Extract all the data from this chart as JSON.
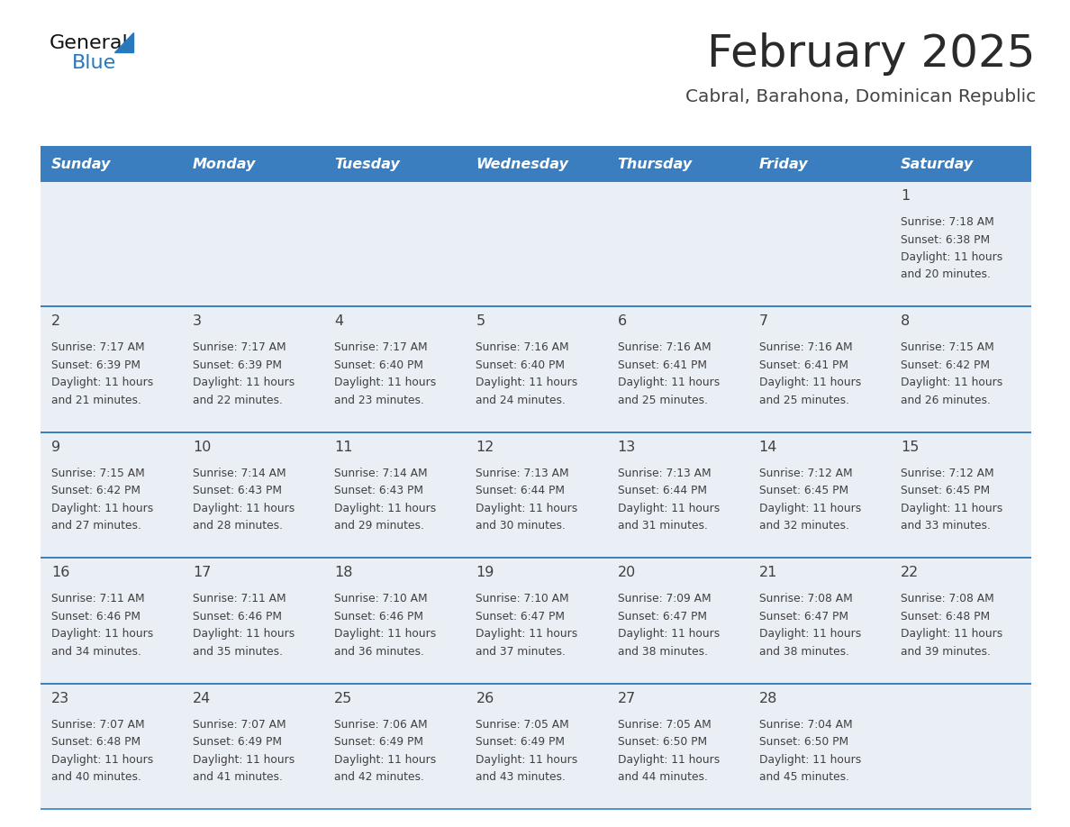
{
  "title": "February 2025",
  "subtitle": "Cabral, Barahona, Dominican Republic",
  "days_of_week": [
    "Sunday",
    "Monday",
    "Tuesday",
    "Wednesday",
    "Thursday",
    "Friday",
    "Saturday"
  ],
  "header_bg": "#3A7EBF",
  "header_text_color": "#FFFFFF",
  "cell_bg": "#EAEFF5",
  "row_line_color": "#3A7EBF",
  "text_color": "#404040",
  "day_num_color": "#404040",
  "title_color": "#2a2a2a",
  "subtitle_color": "#444444",
  "logo_general_color": "#111111",
  "logo_blue_color": "#2878BE",
  "calendar_data": [
    [
      {
        "day": null,
        "sunrise": null,
        "sunset": null,
        "daylight": null
      },
      {
        "day": null,
        "sunrise": null,
        "sunset": null,
        "daylight": null
      },
      {
        "day": null,
        "sunrise": null,
        "sunset": null,
        "daylight": null
      },
      {
        "day": null,
        "sunrise": null,
        "sunset": null,
        "daylight": null
      },
      {
        "day": null,
        "sunrise": null,
        "sunset": null,
        "daylight": null
      },
      {
        "day": null,
        "sunrise": null,
        "sunset": null,
        "daylight": null
      },
      {
        "day": 1,
        "sunrise": "7:18 AM",
        "sunset": "6:38 PM",
        "daylight_line1": "11 hours",
        "daylight_line2": "and 20 minutes."
      }
    ],
    [
      {
        "day": 2,
        "sunrise": "7:17 AM",
        "sunset": "6:39 PM",
        "daylight_line1": "11 hours",
        "daylight_line2": "and 21 minutes."
      },
      {
        "day": 3,
        "sunrise": "7:17 AM",
        "sunset": "6:39 PM",
        "daylight_line1": "11 hours",
        "daylight_line2": "and 22 minutes."
      },
      {
        "day": 4,
        "sunrise": "7:17 AM",
        "sunset": "6:40 PM",
        "daylight_line1": "11 hours",
        "daylight_line2": "and 23 minutes."
      },
      {
        "day": 5,
        "sunrise": "7:16 AM",
        "sunset": "6:40 PM",
        "daylight_line1": "11 hours",
        "daylight_line2": "and 24 minutes."
      },
      {
        "day": 6,
        "sunrise": "7:16 AM",
        "sunset": "6:41 PM",
        "daylight_line1": "11 hours",
        "daylight_line2": "and 25 minutes."
      },
      {
        "day": 7,
        "sunrise": "7:16 AM",
        "sunset": "6:41 PM",
        "daylight_line1": "11 hours",
        "daylight_line2": "and 25 minutes."
      },
      {
        "day": 8,
        "sunrise": "7:15 AM",
        "sunset": "6:42 PM",
        "daylight_line1": "11 hours",
        "daylight_line2": "and 26 minutes."
      }
    ],
    [
      {
        "day": 9,
        "sunrise": "7:15 AM",
        "sunset": "6:42 PM",
        "daylight_line1": "11 hours",
        "daylight_line2": "and 27 minutes."
      },
      {
        "day": 10,
        "sunrise": "7:14 AM",
        "sunset": "6:43 PM",
        "daylight_line1": "11 hours",
        "daylight_line2": "and 28 minutes."
      },
      {
        "day": 11,
        "sunrise": "7:14 AM",
        "sunset": "6:43 PM",
        "daylight_line1": "11 hours",
        "daylight_line2": "and 29 minutes."
      },
      {
        "day": 12,
        "sunrise": "7:13 AM",
        "sunset": "6:44 PM",
        "daylight_line1": "11 hours",
        "daylight_line2": "and 30 minutes."
      },
      {
        "day": 13,
        "sunrise": "7:13 AM",
        "sunset": "6:44 PM",
        "daylight_line1": "11 hours",
        "daylight_line2": "and 31 minutes."
      },
      {
        "day": 14,
        "sunrise": "7:12 AM",
        "sunset": "6:45 PM",
        "daylight_line1": "11 hours",
        "daylight_line2": "and 32 minutes."
      },
      {
        "day": 15,
        "sunrise": "7:12 AM",
        "sunset": "6:45 PM",
        "daylight_line1": "11 hours",
        "daylight_line2": "and 33 minutes."
      }
    ],
    [
      {
        "day": 16,
        "sunrise": "7:11 AM",
        "sunset": "6:46 PM",
        "daylight_line1": "11 hours",
        "daylight_line2": "and 34 minutes."
      },
      {
        "day": 17,
        "sunrise": "7:11 AM",
        "sunset": "6:46 PM",
        "daylight_line1": "11 hours",
        "daylight_line2": "and 35 minutes."
      },
      {
        "day": 18,
        "sunrise": "7:10 AM",
        "sunset": "6:46 PM",
        "daylight_line1": "11 hours",
        "daylight_line2": "and 36 minutes."
      },
      {
        "day": 19,
        "sunrise": "7:10 AM",
        "sunset": "6:47 PM",
        "daylight_line1": "11 hours",
        "daylight_line2": "and 37 minutes."
      },
      {
        "day": 20,
        "sunrise": "7:09 AM",
        "sunset": "6:47 PM",
        "daylight_line1": "11 hours",
        "daylight_line2": "and 38 minutes."
      },
      {
        "day": 21,
        "sunrise": "7:08 AM",
        "sunset": "6:47 PM",
        "daylight_line1": "11 hours",
        "daylight_line2": "and 38 minutes."
      },
      {
        "day": 22,
        "sunrise": "7:08 AM",
        "sunset": "6:48 PM",
        "daylight_line1": "11 hours",
        "daylight_line2": "and 39 minutes."
      }
    ],
    [
      {
        "day": 23,
        "sunrise": "7:07 AM",
        "sunset": "6:48 PM",
        "daylight_line1": "11 hours",
        "daylight_line2": "and 40 minutes."
      },
      {
        "day": 24,
        "sunrise": "7:07 AM",
        "sunset": "6:49 PM",
        "daylight_line1": "11 hours",
        "daylight_line2": "and 41 minutes."
      },
      {
        "day": 25,
        "sunrise": "7:06 AM",
        "sunset": "6:49 PM",
        "daylight_line1": "11 hours",
        "daylight_line2": "and 42 minutes."
      },
      {
        "day": 26,
        "sunrise": "7:05 AM",
        "sunset": "6:49 PM",
        "daylight_line1": "11 hours",
        "daylight_line2": "and 43 minutes."
      },
      {
        "day": 27,
        "sunrise": "7:05 AM",
        "sunset": "6:50 PM",
        "daylight_line1": "11 hours",
        "daylight_line2": "and 44 minutes."
      },
      {
        "day": 28,
        "sunrise": "7:04 AM",
        "sunset": "6:50 PM",
        "daylight_line1": "11 hours",
        "daylight_line2": "and 45 minutes."
      },
      {
        "day": null,
        "sunrise": null,
        "sunset": null,
        "daylight_line1": null,
        "daylight_line2": null
      }
    ]
  ]
}
